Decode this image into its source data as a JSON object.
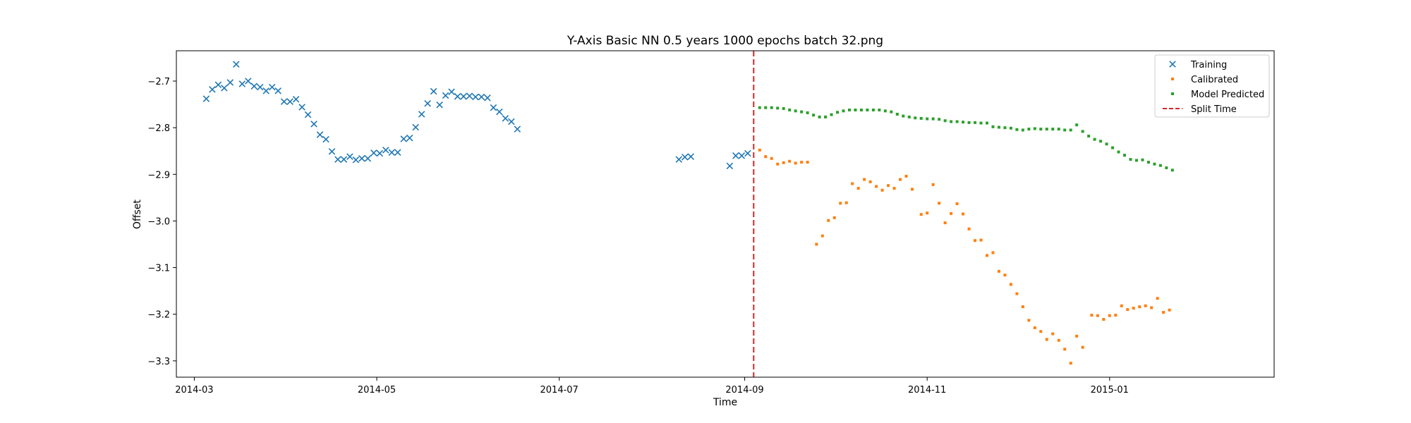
{
  "chart_data": {
    "type": "scatter",
    "title": "Y-Axis Basic NN 0.5 years 1000 epochs batch 32.png",
    "xlabel": "Time",
    "ylabel": "Offset",
    "xlim": [
      "2014-02-23",
      "2015-02-25"
    ],
    "ylim": [
      -3.335,
      -2.635
    ],
    "x_ticks": [
      {
        "date": "2014-03-01",
        "label": "2014-03"
      },
      {
        "date": "2014-05-01",
        "label": "2014-05"
      },
      {
        "date": "2014-07-01",
        "label": "2014-07"
      },
      {
        "date": "2014-09-01",
        "label": "2014-09"
      },
      {
        "date": "2014-11-01",
        "label": "2014-11"
      },
      {
        "date": "2015-01-01",
        "label": "2015-01"
      }
    ],
    "y_ticks": [
      {
        "value": -2.7,
        "label": "−2.7"
      },
      {
        "value": -2.8,
        "label": "−2.8"
      },
      {
        "value": -2.9,
        "label": "−2.9"
      },
      {
        "value": -3.0,
        "label": "−3.0"
      },
      {
        "value": -3.1,
        "label": "−3.1"
      },
      {
        "value": -3.2,
        "label": "−3.2"
      },
      {
        "value": -3.3,
        "label": "−3.3"
      }
    ],
    "grid": false,
    "legend_position": "top-right",
    "split_time": {
      "name": "Split Time",
      "x": "2014-09-04",
      "color": "#d62728",
      "style": "dashed"
    },
    "series": [
      {
        "name": "Training",
        "marker": "x",
        "color": "#1f77b4",
        "points": [
          [
            "2014-03-05",
            -2.738
          ],
          [
            "2014-03-07",
            -2.718
          ],
          [
            "2014-03-09",
            -2.708
          ],
          [
            "2014-03-11",
            -2.715
          ],
          [
            "2014-03-13",
            -2.703
          ],
          [
            "2014-03-15",
            -2.664
          ],
          [
            "2014-03-17",
            -2.706
          ],
          [
            "2014-03-19",
            -2.7
          ],
          [
            "2014-03-21",
            -2.711
          ],
          [
            "2014-03-23",
            -2.713
          ],
          [
            "2014-03-25",
            -2.721
          ],
          [
            "2014-03-27",
            -2.713
          ],
          [
            "2014-03-29",
            -2.721
          ],
          [
            "2014-03-31",
            -2.744
          ],
          [
            "2014-04-02",
            -2.744
          ],
          [
            "2014-04-04",
            -2.739
          ],
          [
            "2014-04-06",
            -2.756
          ],
          [
            "2014-04-08",
            -2.772
          ],
          [
            "2014-04-10",
            -2.792
          ],
          [
            "2014-04-12",
            -2.815
          ],
          [
            "2014-04-14",
            -2.825
          ],
          [
            "2014-04-16",
            -2.851
          ],
          [
            "2014-04-18",
            -2.868
          ],
          [
            "2014-04-20",
            -2.868
          ],
          [
            "2014-04-22",
            -2.862
          ],
          [
            "2014-04-24",
            -2.869
          ],
          [
            "2014-04-26",
            -2.866
          ],
          [
            "2014-04-28",
            -2.866
          ],
          [
            "2014-04-30",
            -2.854
          ],
          [
            "2014-05-02",
            -2.855
          ],
          [
            "2014-05-04",
            -2.848
          ],
          [
            "2014-05-06",
            -2.853
          ],
          [
            "2014-05-08",
            -2.853
          ],
          [
            "2014-05-10",
            -2.824
          ],
          [
            "2014-05-12",
            -2.822
          ],
          [
            "2014-05-14",
            -2.799
          ],
          [
            "2014-05-16",
            -2.771
          ],
          [
            "2014-05-18",
            -2.748
          ],
          [
            "2014-05-20",
            -2.722
          ],
          [
            "2014-05-22",
            -2.751
          ],
          [
            "2014-05-24",
            -2.731
          ],
          [
            "2014-05-26",
            -2.723
          ],
          [
            "2014-05-28",
            -2.733
          ],
          [
            "2014-05-30",
            -2.733
          ],
          [
            "2014-06-01",
            -2.732
          ],
          [
            "2014-06-03",
            -2.734
          ],
          [
            "2014-06-05",
            -2.734
          ],
          [
            "2014-06-07",
            -2.736
          ],
          [
            "2014-06-09",
            -2.757
          ],
          [
            "2014-06-11",
            -2.766
          ],
          [
            "2014-06-13",
            -2.78
          ],
          [
            "2014-06-15",
            -2.787
          ],
          [
            "2014-06-17",
            -2.803
          ],
          [
            "2014-08-10",
            -2.868
          ],
          [
            "2014-08-12",
            -2.863
          ],
          [
            "2014-08-14",
            -2.862
          ],
          [
            "2014-08-27",
            -2.882
          ],
          [
            "2014-08-29",
            -2.86
          ],
          [
            "2014-08-31",
            -2.86
          ],
          [
            "2014-09-02",
            -2.855
          ]
        ]
      },
      {
        "name": "Calibrated",
        "marker": "dot",
        "color": "#ff7f0e",
        "points": [
          [
            "2014-09-06",
            -2.848
          ],
          [
            "2014-09-08",
            -2.862
          ],
          [
            "2014-09-10",
            -2.866
          ],
          [
            "2014-09-12",
            -2.878
          ],
          [
            "2014-09-14",
            -2.875
          ],
          [
            "2014-09-16",
            -2.872
          ],
          [
            "2014-09-18",
            -2.876
          ],
          [
            "2014-09-20",
            -2.874
          ],
          [
            "2014-09-22",
            -2.874
          ],
          [
            "2014-09-25",
            -3.05
          ],
          [
            "2014-09-27",
            -3.032
          ],
          [
            "2014-09-29",
            -2.999
          ],
          [
            "2014-10-01",
            -2.993
          ],
          [
            "2014-10-03",
            -2.962
          ],
          [
            "2014-10-05",
            -2.961
          ],
          [
            "2014-10-07",
            -2.92
          ],
          [
            "2014-10-09",
            -2.93
          ],
          [
            "2014-10-11",
            -2.911
          ],
          [
            "2014-10-13",
            -2.916
          ],
          [
            "2014-10-15",
            -2.926
          ],
          [
            "2014-10-17",
            -2.934
          ],
          [
            "2014-10-19",
            -2.924
          ],
          [
            "2014-10-21",
            -2.93
          ],
          [
            "2014-10-23",
            -2.911
          ],
          [
            "2014-10-25",
            -2.904
          ],
          [
            "2014-10-27",
            -2.932
          ],
          [
            "2014-10-30",
            -2.986
          ],
          [
            "2014-11-01",
            -2.983
          ],
          [
            "2014-11-03",
            -2.922
          ],
          [
            "2014-11-05",
            -2.962
          ],
          [
            "2014-11-07",
            -3.004
          ],
          [
            "2014-11-09",
            -2.984
          ],
          [
            "2014-11-11",
            -2.963
          ],
          [
            "2014-11-13",
            -2.985
          ],
          [
            "2014-11-15",
            -3.017
          ],
          [
            "2014-11-17",
            -3.042
          ],
          [
            "2014-11-19",
            -3.041
          ],
          [
            "2014-11-21",
            -3.074
          ],
          [
            "2014-11-23",
            -3.068
          ],
          [
            "2014-11-25",
            -3.108
          ],
          [
            "2014-11-27",
            -3.116
          ],
          [
            "2014-11-29",
            -3.136
          ],
          [
            "2014-12-01",
            -3.156
          ],
          [
            "2014-12-03",
            -3.184
          ],
          [
            "2014-12-05",
            -3.213
          ],
          [
            "2014-12-07",
            -3.229
          ],
          [
            "2014-12-09",
            -3.237
          ],
          [
            "2014-12-11",
            -3.254
          ],
          [
            "2014-12-13",
            -3.242
          ],
          [
            "2014-12-15",
            -3.256
          ],
          [
            "2014-12-17",
            -3.275
          ],
          [
            "2014-12-19",
            -3.305
          ],
          [
            "2014-12-21",
            -3.247
          ],
          [
            "2014-12-23",
            -3.271
          ],
          [
            "2014-12-26",
            -3.202
          ],
          [
            "2014-12-28",
            -3.203
          ],
          [
            "2014-12-30",
            -3.211
          ],
          [
            "2015-01-01",
            -3.203
          ],
          [
            "2015-01-03",
            -3.202
          ],
          [
            "2015-01-05",
            -3.182
          ],
          [
            "2015-01-07",
            -3.19
          ],
          [
            "2015-01-09",
            -3.187
          ],
          [
            "2015-01-11",
            -3.184
          ],
          [
            "2015-01-13",
            -3.182
          ],
          [
            "2015-01-15",
            -3.186
          ],
          [
            "2015-01-17",
            -3.166
          ],
          [
            "2015-01-19",
            -3.196
          ],
          [
            "2015-01-21",
            -3.191
          ]
        ]
      },
      {
        "name": "Model Predicted",
        "marker": "dot",
        "color": "#2ca02c",
        "points": [
          [
            "2014-09-06",
            -2.757
          ],
          [
            "2014-09-08",
            -2.757
          ],
          [
            "2014-09-10",
            -2.757
          ],
          [
            "2014-09-12",
            -2.758
          ],
          [
            "2014-09-14",
            -2.759
          ],
          [
            "2014-09-16",
            -2.762
          ],
          [
            "2014-09-18",
            -2.764
          ],
          [
            "2014-09-20",
            -2.766
          ],
          [
            "2014-09-22",
            -2.768
          ],
          [
            "2014-09-24",
            -2.773
          ],
          [
            "2014-09-26",
            -2.777
          ],
          [
            "2014-09-28",
            -2.777
          ],
          [
            "2014-09-30",
            -2.772
          ],
          [
            "2014-10-02",
            -2.767
          ],
          [
            "2014-10-04",
            -2.764
          ],
          [
            "2014-10-06",
            -2.762
          ],
          [
            "2014-10-08",
            -2.762
          ],
          [
            "2014-10-10",
            -2.762
          ],
          [
            "2014-10-12",
            -2.762
          ],
          [
            "2014-10-14",
            -2.762
          ],
          [
            "2014-10-16",
            -2.762
          ],
          [
            "2014-10-18",
            -2.764
          ],
          [
            "2014-10-20",
            -2.766
          ],
          [
            "2014-10-22",
            -2.771
          ],
          [
            "2014-10-24",
            -2.775
          ],
          [
            "2014-10-26",
            -2.777
          ],
          [
            "2014-10-28",
            -2.779
          ],
          [
            "2014-10-30",
            -2.78
          ],
          [
            "2014-11-01",
            -2.781
          ],
          [
            "2014-11-03",
            -2.781
          ],
          [
            "2014-11-05",
            -2.782
          ],
          [
            "2014-11-07",
            -2.785
          ],
          [
            "2014-11-09",
            -2.787
          ],
          [
            "2014-11-11",
            -2.787
          ],
          [
            "2014-11-13",
            -2.788
          ],
          [
            "2014-11-15",
            -2.789
          ],
          [
            "2014-11-17",
            -2.789
          ],
          [
            "2014-11-19",
            -2.79
          ],
          [
            "2014-11-21",
            -2.79
          ],
          [
            "2014-11-23",
            -2.798
          ],
          [
            "2014-11-25",
            -2.799
          ],
          [
            "2014-11-27",
            -2.8
          ],
          [
            "2014-11-29",
            -2.801
          ],
          [
            "2014-12-01",
            -2.804
          ],
          [
            "2014-12-03",
            -2.805
          ],
          [
            "2014-12-05",
            -2.803
          ],
          [
            "2014-12-07",
            -2.802
          ],
          [
            "2014-12-09",
            -2.803
          ],
          [
            "2014-12-11",
            -2.803
          ],
          [
            "2014-12-13",
            -2.803
          ],
          [
            "2014-12-15",
            -2.803
          ],
          [
            "2014-12-17",
            -2.805
          ],
          [
            "2014-12-19",
            -2.805
          ],
          [
            "2014-12-21",
            -2.794
          ],
          [
            "2014-12-23",
            -2.808
          ],
          [
            "2014-12-25",
            -2.818
          ],
          [
            "2014-12-27",
            -2.825
          ],
          [
            "2014-12-29",
            -2.829
          ],
          [
            "2014-12-31",
            -2.835
          ],
          [
            "2015-01-02",
            -2.843
          ],
          [
            "2015-01-04",
            -2.852
          ],
          [
            "2015-01-06",
            -2.859
          ],
          [
            "2015-01-08",
            -2.868
          ],
          [
            "2015-01-10",
            -2.87
          ],
          [
            "2015-01-12",
            -2.869
          ],
          [
            "2015-01-14",
            -2.874
          ],
          [
            "2015-01-16",
            -2.878
          ],
          [
            "2015-01-18",
            -2.881
          ],
          [
            "2015-01-20",
            -2.886
          ],
          [
            "2015-01-22",
            -2.891
          ]
        ]
      }
    ]
  }
}
